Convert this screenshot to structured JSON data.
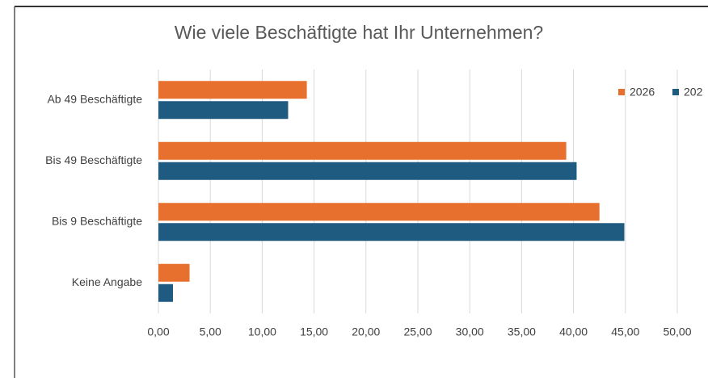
{
  "chart_data": {
    "type": "hbar",
    "title": "Wie viele Beschäftigte hat Ihr Unternehmen?",
    "categories": [
      "Ab 49 Beschäftigte",
      "Bis 49 Beschäftigte",
      "Bis 9 Beschäftigte",
      "Keine Angabe"
    ],
    "series": [
      {
        "name": "2026",
        "color": "#e8702f",
        "values": [
          14.3,
          39.3,
          42.5,
          3.0
        ]
      },
      {
        "name": "202",
        "color": "#1f5a80",
        "values": [
          12.5,
          40.3,
          44.9,
          1.4
        ]
      }
    ],
    "xlim": [
      0,
      50
    ],
    "xticks": [
      {
        "value": 0,
        "label": "0,00"
      },
      {
        "value": 5,
        "label": "5,00"
      },
      {
        "value": 10,
        "label": "10,00"
      },
      {
        "value": 15,
        "label": "15,00"
      },
      {
        "value": 20,
        "label": "20,00"
      },
      {
        "value": 25,
        "label": "25,00"
      },
      {
        "value": 30,
        "label": "30,00"
      },
      {
        "value": 35,
        "label": "35,00"
      },
      {
        "value": 40,
        "label": "40,00"
      },
      {
        "value": 45,
        "label": "45,00"
      },
      {
        "value": 50,
        "label": "50,00"
      }
    ],
    "grid": true,
    "legend": "top-right"
  }
}
